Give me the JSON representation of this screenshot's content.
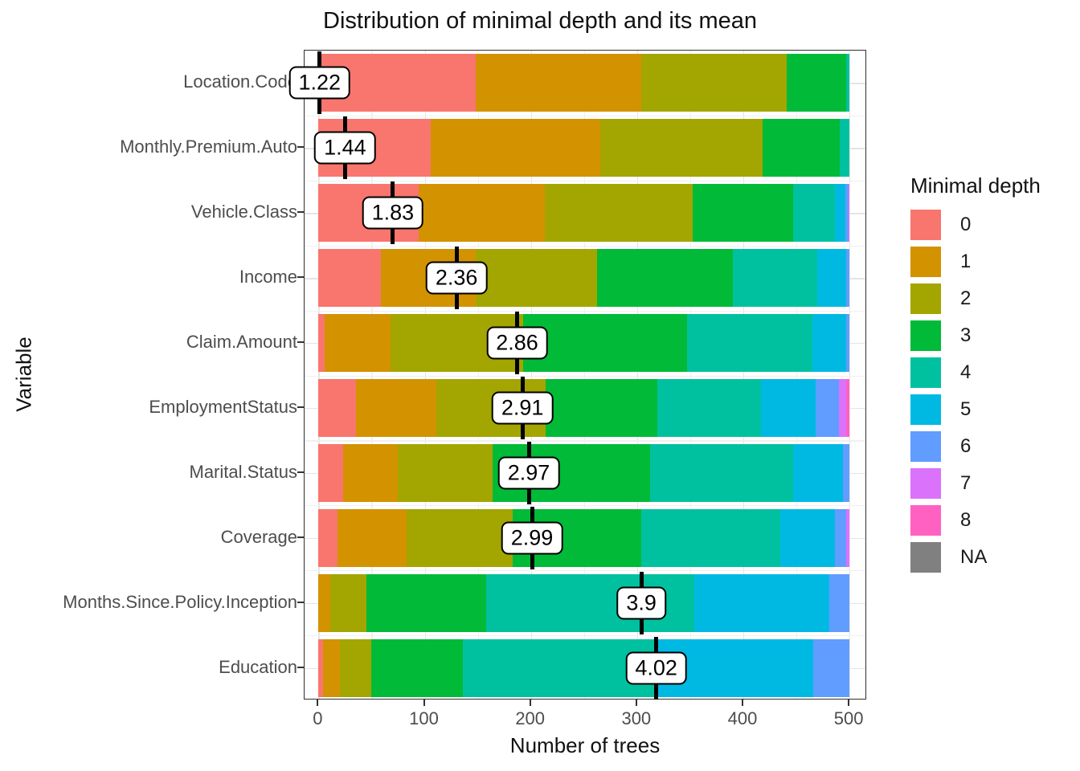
{
  "title": "Distribution of minimal depth and its mean",
  "legend": {
    "title": "Minimal depth",
    "labels": [
      "0",
      "1",
      "2",
      "3",
      "4",
      "5",
      "6",
      "7",
      "8",
      "NA"
    ]
  },
  "chart_data": {
    "type": "bar",
    "stacked": true,
    "orientation": "horizontal",
    "title": "Distribution of minimal depth and its mean",
    "xlabel": "Number of trees",
    "ylabel": "Variable",
    "xlim": [
      0,
      500
    ],
    "x_ticks": [
      0,
      100,
      200,
      300,
      400,
      500
    ],
    "x_minor_ticks": [
      50,
      150,
      250,
      350,
      450
    ],
    "legend_position": "right",
    "colors": {
      "0": "#F8766D",
      "1": "#D39200",
      "2": "#A3A500",
      "3": "#00BA38",
      "4": "#00C19F",
      "5": "#00B9E3",
      "6": "#619CFF",
      "7": "#DB72FB",
      "8": "#FF61C3",
      "NA": "#808080"
    },
    "rows": [
      {
        "variable": "Location.Code",
        "mean_min_depth": "1.22",
        "mean_line_x": 1,
        "segments": [
          {
            "depth": "0",
            "trees": 148
          },
          {
            "depth": "1",
            "trees": 156
          },
          {
            "depth": "2",
            "trees": 137
          },
          {
            "depth": "3",
            "trees": 56
          },
          {
            "depth": "4",
            "trees": 3
          }
        ]
      },
      {
        "variable": "Monthly.Premium.Auto",
        "mean_min_depth": "1.44",
        "mean_line_x": 25,
        "segments": [
          {
            "depth": "0",
            "trees": 106
          },
          {
            "depth": "1",
            "trees": 159
          },
          {
            "depth": "2",
            "trees": 153
          },
          {
            "depth": "3",
            "trees": 73
          },
          {
            "depth": "4",
            "trees": 9
          }
        ]
      },
      {
        "variable": "Vehicle.Class",
        "mean_min_depth": "1.83",
        "mean_line_x": 70,
        "segments": [
          {
            "depth": "0",
            "trees": 94
          },
          {
            "depth": "1",
            "trees": 119
          },
          {
            "depth": "2",
            "trees": 139
          },
          {
            "depth": "3",
            "trees": 95
          },
          {
            "depth": "4",
            "trees": 39
          },
          {
            "depth": "5",
            "trees": 10
          },
          {
            "depth": "6",
            "trees": 3
          },
          {
            "depth": "7",
            "trees": 1
          }
        ]
      },
      {
        "variable": "Income",
        "mean_min_depth": "2.36",
        "mean_line_x": 130,
        "segments": [
          {
            "depth": "0",
            "trees": 59
          },
          {
            "depth": "1",
            "trees": 89
          },
          {
            "depth": "2",
            "trees": 114
          },
          {
            "depth": "3",
            "trees": 128
          },
          {
            "depth": "4",
            "trees": 80
          },
          {
            "depth": "5",
            "trees": 27
          },
          {
            "depth": "6",
            "trees": 3
          }
        ]
      },
      {
        "variable": "Claim.Amount",
        "mean_min_depth": "2.86",
        "mean_line_x": 187,
        "segments": [
          {
            "depth": "0",
            "trees": 6
          },
          {
            "depth": "1",
            "trees": 62
          },
          {
            "depth": "2",
            "trees": 125
          },
          {
            "depth": "3",
            "trees": 154
          },
          {
            "depth": "4",
            "trees": 118
          },
          {
            "depth": "5",
            "trees": 32
          },
          {
            "depth": "6",
            "trees": 3
          }
        ]
      },
      {
        "variable": "EmploymentStatus",
        "mean_min_depth": "2.91",
        "mean_line_x": 192,
        "segments": [
          {
            "depth": "0",
            "trees": 35
          },
          {
            "depth": "1",
            "trees": 76
          },
          {
            "depth": "2",
            "trees": 103
          },
          {
            "depth": "3",
            "trees": 105
          },
          {
            "depth": "4",
            "trees": 98
          },
          {
            "depth": "5",
            "trees": 51
          },
          {
            "depth": "6",
            "trees": 22
          },
          {
            "depth": "7",
            "trees": 7
          },
          {
            "depth": "8",
            "trees": 3
          }
        ]
      },
      {
        "variable": "Marital.Status",
        "mean_min_depth": "2.97",
        "mean_line_x": 198,
        "segments": [
          {
            "depth": "0",
            "trees": 23
          },
          {
            "depth": "1",
            "trees": 52
          },
          {
            "depth": "2",
            "trees": 89
          },
          {
            "depth": "3",
            "trees": 148
          },
          {
            "depth": "4",
            "trees": 135
          },
          {
            "depth": "5",
            "trees": 47
          },
          {
            "depth": "6",
            "trees": 6
          }
        ]
      },
      {
        "variable": "Coverage",
        "mean_min_depth": "2.99",
        "mean_line_x": 201,
        "segments": [
          {
            "depth": "0",
            "trees": 18
          },
          {
            "depth": "1",
            "trees": 65
          },
          {
            "depth": "2",
            "trees": 100
          },
          {
            "depth": "3",
            "trees": 121
          },
          {
            "depth": "4",
            "trees": 131
          },
          {
            "depth": "5",
            "trees": 51
          },
          {
            "depth": "6",
            "trees": 11
          },
          {
            "depth": "7",
            "trees": 3
          }
        ]
      },
      {
        "variable": "Months.Since.Policy.Inception",
        "mean_min_depth": "3.9",
        "mean_line_x": 304,
        "segments": [
          {
            "depth": "1",
            "trees": 11
          },
          {
            "depth": "2",
            "trees": 34
          },
          {
            "depth": "3",
            "trees": 113
          },
          {
            "depth": "4",
            "trees": 196
          },
          {
            "depth": "5",
            "trees": 127
          },
          {
            "depth": "6",
            "trees": 19
          }
        ]
      },
      {
        "variable": "Education",
        "mean_min_depth": "4.02",
        "mean_line_x": 318,
        "segments": [
          {
            "depth": "0",
            "trees": 4
          },
          {
            "depth": "1",
            "trees": 16
          },
          {
            "depth": "2",
            "trees": 30
          },
          {
            "depth": "3",
            "trees": 86
          },
          {
            "depth": "4",
            "trees": 180
          },
          {
            "depth": "5",
            "trees": 150
          },
          {
            "depth": "6",
            "trees": 34
          }
        ]
      }
    ]
  }
}
